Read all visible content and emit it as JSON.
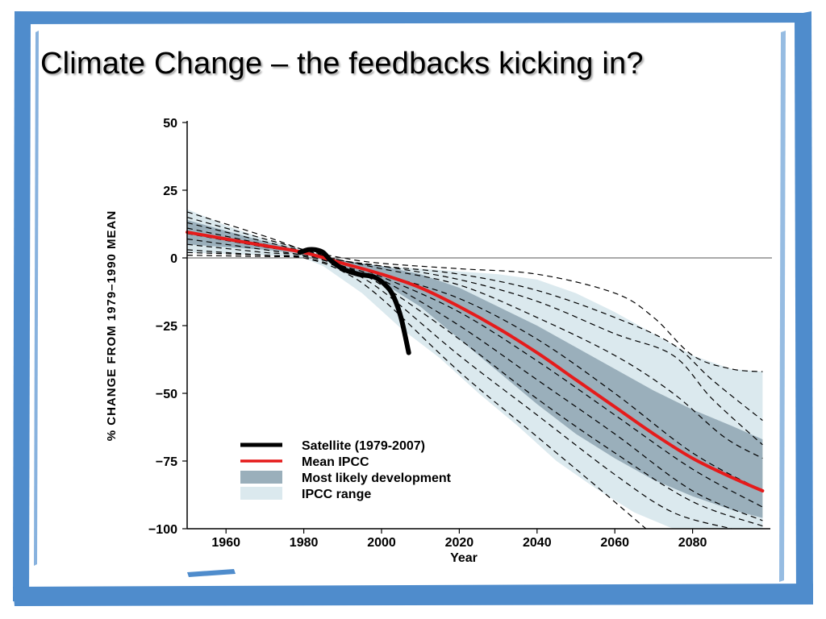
{
  "slide": {
    "title": "Climate Change – the feedbacks kicking in?",
    "frame_color": "#4f8ccc"
  },
  "chart_data": {
    "type": "line",
    "title": "",
    "xlabel": "Year",
    "ylabel": "% CHANGE FROM 1979–1990 MEAN",
    "xlim": [
      1950,
      2100
    ],
    "ylim": [
      -100,
      50
    ],
    "x_ticks": [
      1960,
      1980,
      2000,
      2020,
      2040,
      2060,
      2080
    ],
    "y_ticks": [
      50,
      25,
      0,
      -25,
      -50,
      -75,
      -100
    ],
    "reference_line_y": 0,
    "legend": {
      "placement": "bottom-left",
      "entries": [
        {
          "label": "Satellite (1979-2007)",
          "kind": "line",
          "color": "#000000"
        },
        {
          "label": "Mean IPCC",
          "kind": "line",
          "color": "#e51b1b"
        },
        {
          "label": "Most likely development",
          "kind": "patch",
          "color": "#9aafbb"
        },
        {
          "label": "IPCC range",
          "kind": "patch",
          "color": "#dbe9ee"
        }
      ]
    },
    "series": [
      {
        "name": "Satellite (1979-2007)",
        "color": "#000000",
        "points": [
          [
            1979,
            2
          ],
          [
            1981,
            3
          ],
          [
            1983,
            3
          ],
          [
            1985,
            2
          ],
          [
            1987,
            -1
          ],
          [
            1990,
            -4
          ],
          [
            1994,
            -6
          ],
          [
            1998,
            -7
          ],
          [
            2001,
            -10
          ],
          [
            2003,
            -14
          ],
          [
            2005,
            -22
          ],
          [
            2007,
            -35
          ]
        ]
      },
      {
        "name": "Mean IPCC",
        "color": "#e51b1b",
        "points": [
          [
            1950,
            9.5
          ],
          [
            1960,
            7
          ],
          [
            1970,
            4.5
          ],
          [
            1980,
            2
          ],
          [
            1990,
            -2
          ],
          [
            2000,
            -6
          ],
          [
            2010,
            -11
          ],
          [
            2020,
            -18
          ],
          [
            2030,
            -26
          ],
          [
            2040,
            -35
          ],
          [
            2050,
            -45
          ],
          [
            2060,
            -55
          ],
          [
            2070,
            -65
          ],
          [
            2080,
            -74
          ],
          [
            2090,
            -81
          ],
          [
            2098,
            -86
          ]
        ]
      }
    ],
    "bands": [
      {
        "name": "IPCC range",
        "color": "#dbe9ee",
        "upper": [
          [
            1950,
            18
          ],
          [
            1960,
            12
          ],
          [
            1970,
            7
          ],
          [
            1980,
            3
          ],
          [
            1990,
            -1
          ],
          [
            2000,
            -3
          ],
          [
            2010,
            -4
          ],
          [
            2020,
            -5
          ],
          [
            2030,
            -6
          ],
          [
            2040,
            -8
          ],
          [
            2050,
            -13
          ],
          [
            2060,
            -20
          ],
          [
            2070,
            -28
          ],
          [
            2080,
            -36
          ],
          [
            2090,
            -41
          ],
          [
            2098,
            -42
          ]
        ],
        "lower": [
          [
            2098,
            -100
          ],
          [
            2085,
            -100
          ],
          [
            2075,
            -100
          ],
          [
            2065,
            -94
          ],
          [
            2055,
            -85
          ],
          [
            2045,
            -75
          ],
          [
            2035,
            -62
          ],
          [
            2025,
            -50
          ],
          [
            2015,
            -37
          ],
          [
            2005,
            -26
          ],
          [
            1995,
            -13
          ],
          [
            1985,
            -3
          ],
          [
            1980,
            0
          ],
          [
            1970,
            1
          ],
          [
            1960,
            1.5
          ],
          [
            1950,
            2
          ]
        ]
      },
      {
        "name": "Most likely development",
        "color": "#9aafbb",
        "upper": [
          [
            1950,
            14
          ],
          [
            1960,
            10
          ],
          [
            1970,
            6
          ],
          [
            1980,
            2.5
          ],
          [
            1990,
            -1
          ],
          [
            2000,
            -3
          ],
          [
            2010,
            -6
          ],
          [
            2020,
            -11
          ],
          [
            2030,
            -18
          ],
          [
            2040,
            -25
          ],
          [
            2050,
            -33
          ],
          [
            2060,
            -41
          ],
          [
            2070,
            -49
          ],
          [
            2080,
            -56
          ],
          [
            2090,
            -62
          ],
          [
            2098,
            -67
          ]
        ],
        "lower": [
          [
            2098,
            -96
          ],
          [
            2090,
            -93
          ],
          [
            2080,
            -88
          ],
          [
            2070,
            -82
          ],
          [
            2060,
            -74
          ],
          [
            2050,
            -65
          ],
          [
            2040,
            -54
          ],
          [
            2030,
            -42
          ],
          [
            2020,
            -30
          ],
          [
            2010,
            -18
          ],
          [
            2000,
            -9
          ],
          [
            1990,
            -3
          ],
          [
            1980,
            1.5
          ],
          [
            1970,
            3
          ],
          [
            1960,
            4
          ],
          [
            1950,
            5
          ]
        ]
      }
    ],
    "model_runs": [
      [
        [
          1950,
          17
        ],
        [
          1970,
          8
        ],
        [
          1980,
          3
        ],
        [
          1990,
          0
        ],
        [
          2000,
          -2
        ],
        [
          2020,
          -4
        ],
        [
          2040,
          -6
        ],
        [
          2060,
          -13
        ],
        [
          2070,
          -22
        ],
        [
          2080,
          -36
        ],
        [
          2090,
          -41
        ],
        [
          2098,
          -42
        ]
      ],
      [
        [
          1950,
          15
        ],
        [
          1970,
          7
        ],
        [
          1980,
          3
        ],
        [
          1990,
          -1
        ],
        [
          2000,
          -3
        ],
        [
          2020,
          -6
        ],
        [
          2040,
          -12
        ],
        [
          2060,
          -22
        ],
        [
          2075,
          -32
        ],
        [
          2085,
          -45
        ],
        [
          2098,
          -60
        ]
      ],
      [
        [
          1950,
          13
        ],
        [
          1970,
          6
        ],
        [
          1980,
          2.5
        ],
        [
          1990,
          -1
        ],
        [
          2000,
          -3
        ],
        [
          2020,
          -8
        ],
        [
          2040,
          -16
        ],
        [
          2060,
          -28
        ],
        [
          2075,
          -36
        ],
        [
          2085,
          -52
        ],
        [
          2098,
          -69
        ]
      ],
      [
        [
          1950,
          11
        ],
        [
          1970,
          5
        ],
        [
          1980,
          2
        ],
        [
          1990,
          -1
        ],
        [
          2000,
          -4
        ],
        [
          2020,
          -10
        ],
        [
          2040,
          -22
        ],
        [
          2060,
          -36
        ],
        [
          2075,
          -50
        ],
        [
          2088,
          -66
        ],
        [
          2098,
          -74
        ]
      ],
      [
        [
          1950,
          9
        ],
        [
          1970,
          4
        ],
        [
          1980,
          2
        ],
        [
          1990,
          -2
        ],
        [
          2000,
          -6
        ],
        [
          2020,
          -15
        ],
        [
          2040,
          -30
        ],
        [
          2060,
          -50
        ],
        [
          2080,
          -72
        ],
        [
          2098,
          -86
        ]
      ],
      [
        [
          1950,
          7
        ],
        [
          1970,
          3
        ],
        [
          1980,
          1
        ],
        [
          1990,
          -2
        ],
        [
          2000,
          -7
        ],
        [
          2020,
          -20
        ],
        [
          2040,
          -38
        ],
        [
          2060,
          -58
        ],
        [
          2080,
          -78
        ],
        [
          2098,
          -92
        ]
      ],
      [
        [
          1950,
          5
        ],
        [
          1970,
          2
        ],
        [
          1980,
          1
        ],
        [
          1990,
          -3
        ],
        [
          2000,
          -8
        ],
        [
          2020,
          -25
        ],
        [
          2040,
          -45
        ],
        [
          2060,
          -65
        ],
        [
          2080,
          -86
        ],
        [
          2098,
          -97
        ]
      ],
      [
        [
          1950,
          3
        ],
        [
          1970,
          1
        ],
        [
          1980,
          0.5
        ],
        [
          1990,
          -3
        ],
        [
          2000,
          -10
        ],
        [
          2020,
          -30
        ],
        [
          2040,
          -52
        ],
        [
          2060,
          -72
        ],
        [
          2080,
          -90
        ],
        [
          2098,
          -99
        ]
      ],
      [
        [
          1950,
          1
        ],
        [
          1970,
          0.5
        ],
        [
          1980,
          0
        ],
        [
          1990,
          -4
        ],
        [
          2000,
          -12
        ],
        [
          2020,
          -36
        ],
        [
          2040,
          -58
        ],
        [
          2060,
          -80
        ],
        [
          2075,
          -94
        ],
        [
          2090,
          -100
        ]
      ],
      [
        [
          1950,
          2
        ],
        [
          1970,
          1
        ],
        [
          1980,
          0
        ],
        [
          1990,
          -5
        ],
        [
          2000,
          -15
        ],
        [
          2020,
          -42
        ],
        [
          2040,
          -66
        ],
        [
          2055,
          -84
        ],
        [
          2068,
          -100
        ]
      ]
    ]
  }
}
